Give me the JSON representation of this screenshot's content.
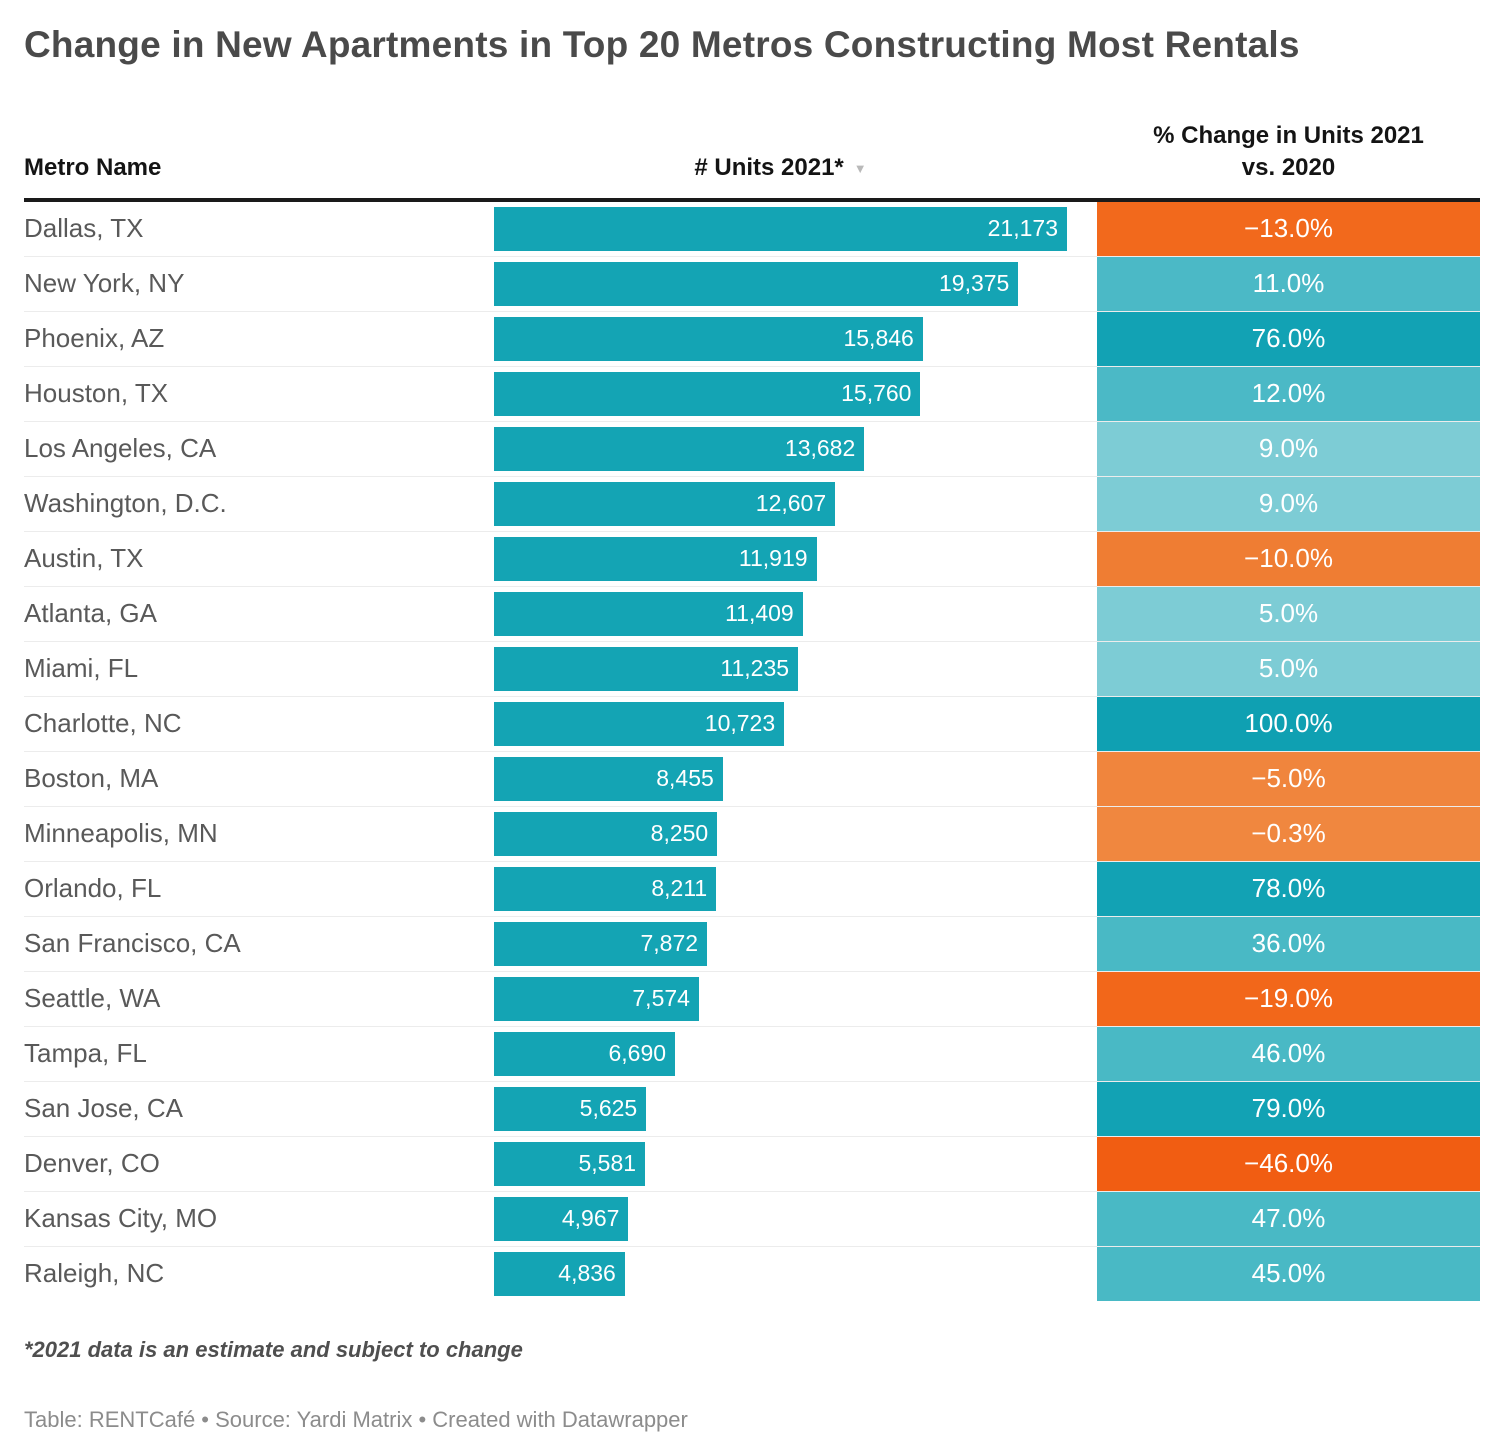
{
  "title": "Change in New Apartments in Top 20 Metros Constructing Most Rentals",
  "columns": {
    "metro": "Metro Name",
    "units": "# Units 2021*",
    "change_line1": "% Change in Units 2021",
    "change_line2": "vs. 2020"
  },
  "sort_icon": "▼",
  "footnote": "*2021 data is an estimate and subject to change",
  "source": "Table: RENTCafé • Source: Yardi Matrix • Created with Datawrapper",
  "colors": {
    "bar": "#14a4b4",
    "header_rule": "#1a1a1a",
    "row_divider": "#ececec"
  },
  "chart_data": {
    "type": "table",
    "title": "Change in New Apartments in Top 20 Metros Constructing Most Rentals",
    "columns": [
      "Metro Name",
      "# Units 2021*",
      "% Change in Units 2021 vs. 2020"
    ],
    "units_axis_max": 21173,
    "bar_color": "#14a4b4",
    "rows": [
      {
        "metro": "Dallas, TX",
        "units": 21173,
        "units_label": "21,173",
        "change_pct": -13.0,
        "change_label": "−13.0%",
        "cell_color": "#f2691c"
      },
      {
        "metro": "New York, NY",
        "units": 19375,
        "units_label": "19,375",
        "change_pct": 11.0,
        "change_label": "11.0%",
        "cell_color": "#4bb9c6"
      },
      {
        "metro": "Phoenix, AZ",
        "units": 15846,
        "units_label": "15,846",
        "change_pct": 76.0,
        "change_label": "76.0%",
        "cell_color": "#12a2b4"
      },
      {
        "metro": "Houston, TX",
        "units": 15760,
        "units_label": "15,760",
        "change_pct": 12.0,
        "change_label": "12.0%",
        "cell_color": "#4bb9c6"
      },
      {
        "metro": "Los Angeles, CA",
        "units": 13682,
        "units_label": "13,682",
        "change_pct": 9.0,
        "change_label": "9.0%",
        "cell_color": "#7dccd5"
      },
      {
        "metro": "Washington, D.C.",
        "units": 12607,
        "units_label": "12,607",
        "change_pct": 9.0,
        "change_label": "9.0%",
        "cell_color": "#7dccd5"
      },
      {
        "metro": "Austin, TX",
        "units": 11919,
        "units_label": "11,919",
        "change_pct": -10.0,
        "change_label": "−10.0%",
        "cell_color": "#ef7d33"
      },
      {
        "metro": "Atlanta, GA",
        "units": 11409,
        "units_label": "11,409",
        "change_pct": 5.0,
        "change_label": "5.0%",
        "cell_color": "#7dccd5"
      },
      {
        "metro": "Miami, FL",
        "units": 11235,
        "units_label": "11,235",
        "change_pct": 5.0,
        "change_label": "5.0%",
        "cell_color": "#7dccd5"
      },
      {
        "metro": "Charlotte, NC",
        "units": 10723,
        "units_label": "10,723",
        "change_pct": 100.0,
        "change_label": "100.0%",
        "cell_color": "#0fa0b2"
      },
      {
        "metro": "Boston, MA",
        "units": 8455,
        "units_label": "8,455",
        "change_pct": -5.0,
        "change_label": "−5.0%",
        "cell_color": "#f0853d"
      },
      {
        "metro": "Minneapolis, MN",
        "units": 8250,
        "units_label": "8,250",
        "change_pct": -0.3,
        "change_label": "−0.3%",
        "cell_color": "#f0873f"
      },
      {
        "metro": "Orlando, FL",
        "units": 8211,
        "units_label": "8,211",
        "change_pct": 78.0,
        "change_label": "78.0%",
        "cell_color": "#12a2b4"
      },
      {
        "metro": "San Francisco, CA",
        "units": 7872,
        "units_label": "7,872",
        "change_pct": 36.0,
        "change_label": "36.0%",
        "cell_color": "#49b9c5"
      },
      {
        "metro": "Seattle, WA",
        "units": 7574,
        "units_label": "7,574",
        "change_pct": -19.0,
        "change_label": "−19.0%",
        "cell_color": "#f2671a"
      },
      {
        "metro": "Tampa, FL",
        "units": 6690,
        "units_label": "6,690",
        "change_pct": 46.0,
        "change_label": "46.0%",
        "cell_color": "#49b9c5"
      },
      {
        "metro": "San Jose, CA",
        "units": 5625,
        "units_label": "5,625",
        "change_pct": 79.0,
        "change_label": "79.0%",
        "cell_color": "#12a2b4"
      },
      {
        "metro": "Denver, CO",
        "units": 5581,
        "units_label": "5,581",
        "change_pct": -46.0,
        "change_label": "−46.0%",
        "cell_color": "#f15d12"
      },
      {
        "metro": "Kansas City, MO",
        "units": 4967,
        "units_label": "4,967",
        "change_pct": 47.0,
        "change_label": "47.0%",
        "cell_color": "#49b9c5"
      },
      {
        "metro": "Raleigh, NC",
        "units": 4836,
        "units_label": "4,836",
        "change_pct": 45.0,
        "change_label": "45.0%",
        "cell_color": "#49b9c5"
      }
    ]
  }
}
